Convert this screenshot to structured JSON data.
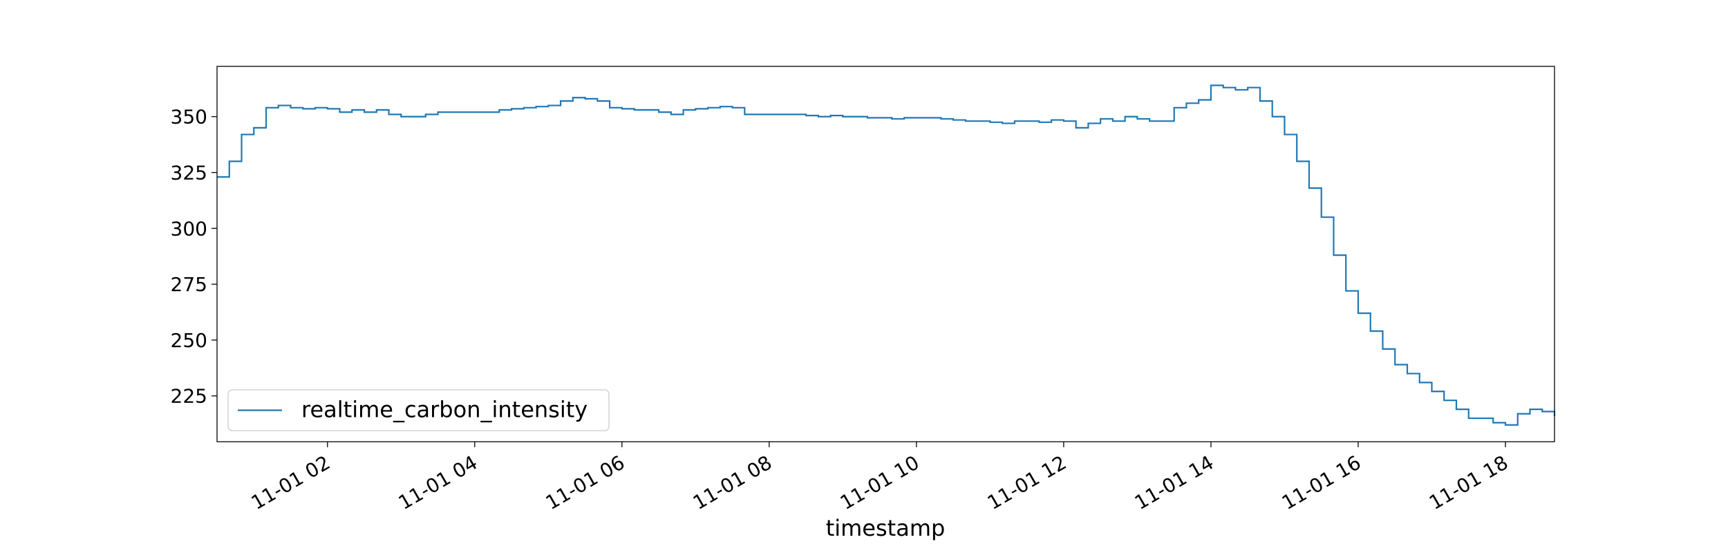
{
  "chart_data": {
    "type": "step",
    "xlabel": "timestamp",
    "x": [
      30,
      40,
      50,
      60,
      70,
      80,
      90,
      100,
      110,
      120,
      130,
      140,
      150,
      160,
      170,
      180,
      190,
      200,
      210,
      220,
      230,
      240,
      250,
      260,
      270,
      280,
      290,
      300,
      310,
      320,
      330,
      340,
      350,
      360,
      370,
      380,
      390,
      400,
      410,
      420,
      430,
      440,
      450,
      460,
      470,
      480,
      490,
      500,
      510,
      520,
      530,
      540,
      550,
      560,
      570,
      580,
      590,
      600,
      610,
      620,
      630,
      640,
      650,
      660,
      670,
      680,
      690,
      700,
      710,
      720,
      730,
      740,
      750,
      760,
      770,
      780,
      790,
      800,
      810,
      820,
      830,
      840,
      850,
      860,
      870,
      880,
      890,
      900,
      910,
      920,
      930,
      940,
      950,
      960,
      970,
      980,
      990,
      1000,
      1010,
      1020,
      1030,
      1040,
      1050,
      1060,
      1070,
      1080,
      1090,
      1100,
      1110,
      1120
    ],
    "series": [
      {
        "name": "realtime_carbon_intensity",
        "color": "#1f77b4",
        "values": [
          323,
          330,
          342,
          345,
          354,
          355,
          354,
          353.5,
          354,
          353.5,
          352,
          353,
          352,
          353,
          351,
          350,
          350,
          351,
          352,
          352,
          352,
          352,
          352,
          353,
          353.5,
          354,
          354.5,
          355,
          357,
          358.5,
          358,
          357,
          354,
          353.5,
          353,
          353,
          352,
          351,
          353,
          353.5,
          354,
          354.5,
          354,
          351,
          351,
          351,
          351,
          351,
          350.5,
          350,
          350.5,
          350,
          350,
          349.5,
          349.5,
          349,
          349.5,
          349.5,
          349.5,
          349,
          348.5,
          348,
          348,
          347.5,
          347,
          348,
          348,
          347.5,
          348.5,
          348,
          345,
          347,
          349,
          348,
          350,
          349,
          348,
          348,
          354,
          356,
          357.5,
          364,
          363,
          362,
          363,
          357,
          350,
          342,
          330,
          318,
          305,
          288,
          272,
          262,
          254,
          246,
          239,
          235,
          231,
          227,
          223,
          219,
          215,
          215,
          213,
          212,
          217,
          219,
          218,
          216
        ]
      }
    ],
    "xlim": [
      30,
      1120
    ],
    "xticks": [
      {
        "value": 120,
        "label": "11-01 02"
      },
      {
        "value": 240,
        "label": "11-01 04"
      },
      {
        "value": 360,
        "label": "11-01 06"
      },
      {
        "value": 480,
        "label": "11-01 08"
      },
      {
        "value": 600,
        "label": "11-01 10"
      },
      {
        "value": 720,
        "label": "11-01 12"
      },
      {
        "value": 840,
        "label": "11-01 14"
      },
      {
        "value": 960,
        "label": "11-01 16"
      },
      {
        "value": 1080,
        "label": "11-01 18"
      }
    ],
    "ylim": [
      204.5,
      372.5
    ],
    "yticks": [
      225,
      250,
      275,
      300,
      325,
      350
    ],
    "legend": "lower left"
  }
}
